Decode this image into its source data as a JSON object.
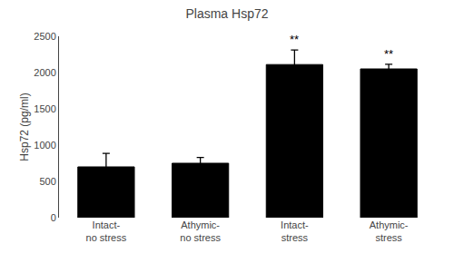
{
  "chart_data": {
    "type": "bar",
    "title": "Plasma Hsp72",
    "ylabel": "Hsp72 (pg/ml)",
    "categories": [
      "Intact-\nno stress",
      "Athymic-\nno stress",
      "Intact-\nstress",
      "Athymic-\nstress"
    ],
    "values": [
      700,
      750,
      2110,
      2050
    ],
    "errors": [
      185,
      80,
      200,
      65
    ],
    "color": "#000000",
    "ylim": [
      0,
      2500
    ],
    "yticks": [
      0,
      500,
      1000,
      1500,
      2000,
      2500
    ],
    "grid": false,
    "annotations": [
      {
        "text": "**",
        "category": "Intact-\nstress"
      },
      {
        "text": "**",
        "category": "Athymic-\nstress"
      }
    ]
  }
}
